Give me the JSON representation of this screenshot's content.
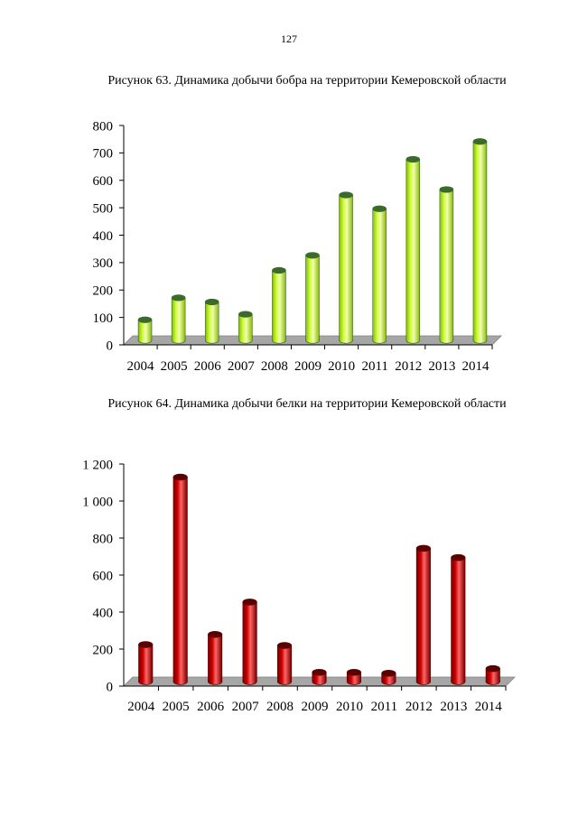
{
  "page": {
    "number": "127"
  },
  "chart_data": [
    {
      "type": "bar",
      "title": "Рисунок 63. Динамика добычи бобра на территории Кемеровской области",
      "categories": [
        "2004",
        "2005",
        "2006",
        "2007",
        "2008",
        "2009",
        "2010",
        "2011",
        "2012",
        "2013",
        "2014"
      ],
      "values": [
        75,
        155,
        140,
        95,
        255,
        310,
        530,
        480,
        660,
        550,
        725
      ],
      "ylim": [
        0,
        800
      ],
      "yticks": [
        0,
        100,
        200,
        300,
        400,
        500,
        600,
        700,
        800
      ],
      "ytick_labels": [
        "0",
        "100",
        "200",
        "300",
        "400",
        "500",
        "600",
        "700",
        "800"
      ],
      "xlabel": "",
      "ylabel": "",
      "bar_color": "#ccff33",
      "bar_edge": "#3a6b2a",
      "floor_color": "#a6a6a6"
    },
    {
      "type": "bar",
      "title": "Рисунок 64. Динамика добычи белки на территории Кемеровской области",
      "categories": [
        "2004",
        "2005",
        "2006",
        "2007",
        "2008",
        "2009",
        "2010",
        "2011",
        "2012",
        "2013",
        "2014"
      ],
      "values": [
        200,
        1105,
        255,
        430,
        195,
        50,
        50,
        45,
        720,
        670,
        70
      ],
      "ylim": [
        0,
        1200
      ],
      "yticks": [
        0,
        200,
        400,
        600,
        800,
        1000,
        1200
      ],
      "ytick_labels": [
        "0",
        "200",
        "400",
        "600",
        "800",
        "1 000",
        "1 200"
      ],
      "xlabel": "",
      "ylabel": "",
      "bar_color": "#cc0000",
      "bar_edge": "#5a0000",
      "floor_color": "#a6a6a6"
    }
  ]
}
